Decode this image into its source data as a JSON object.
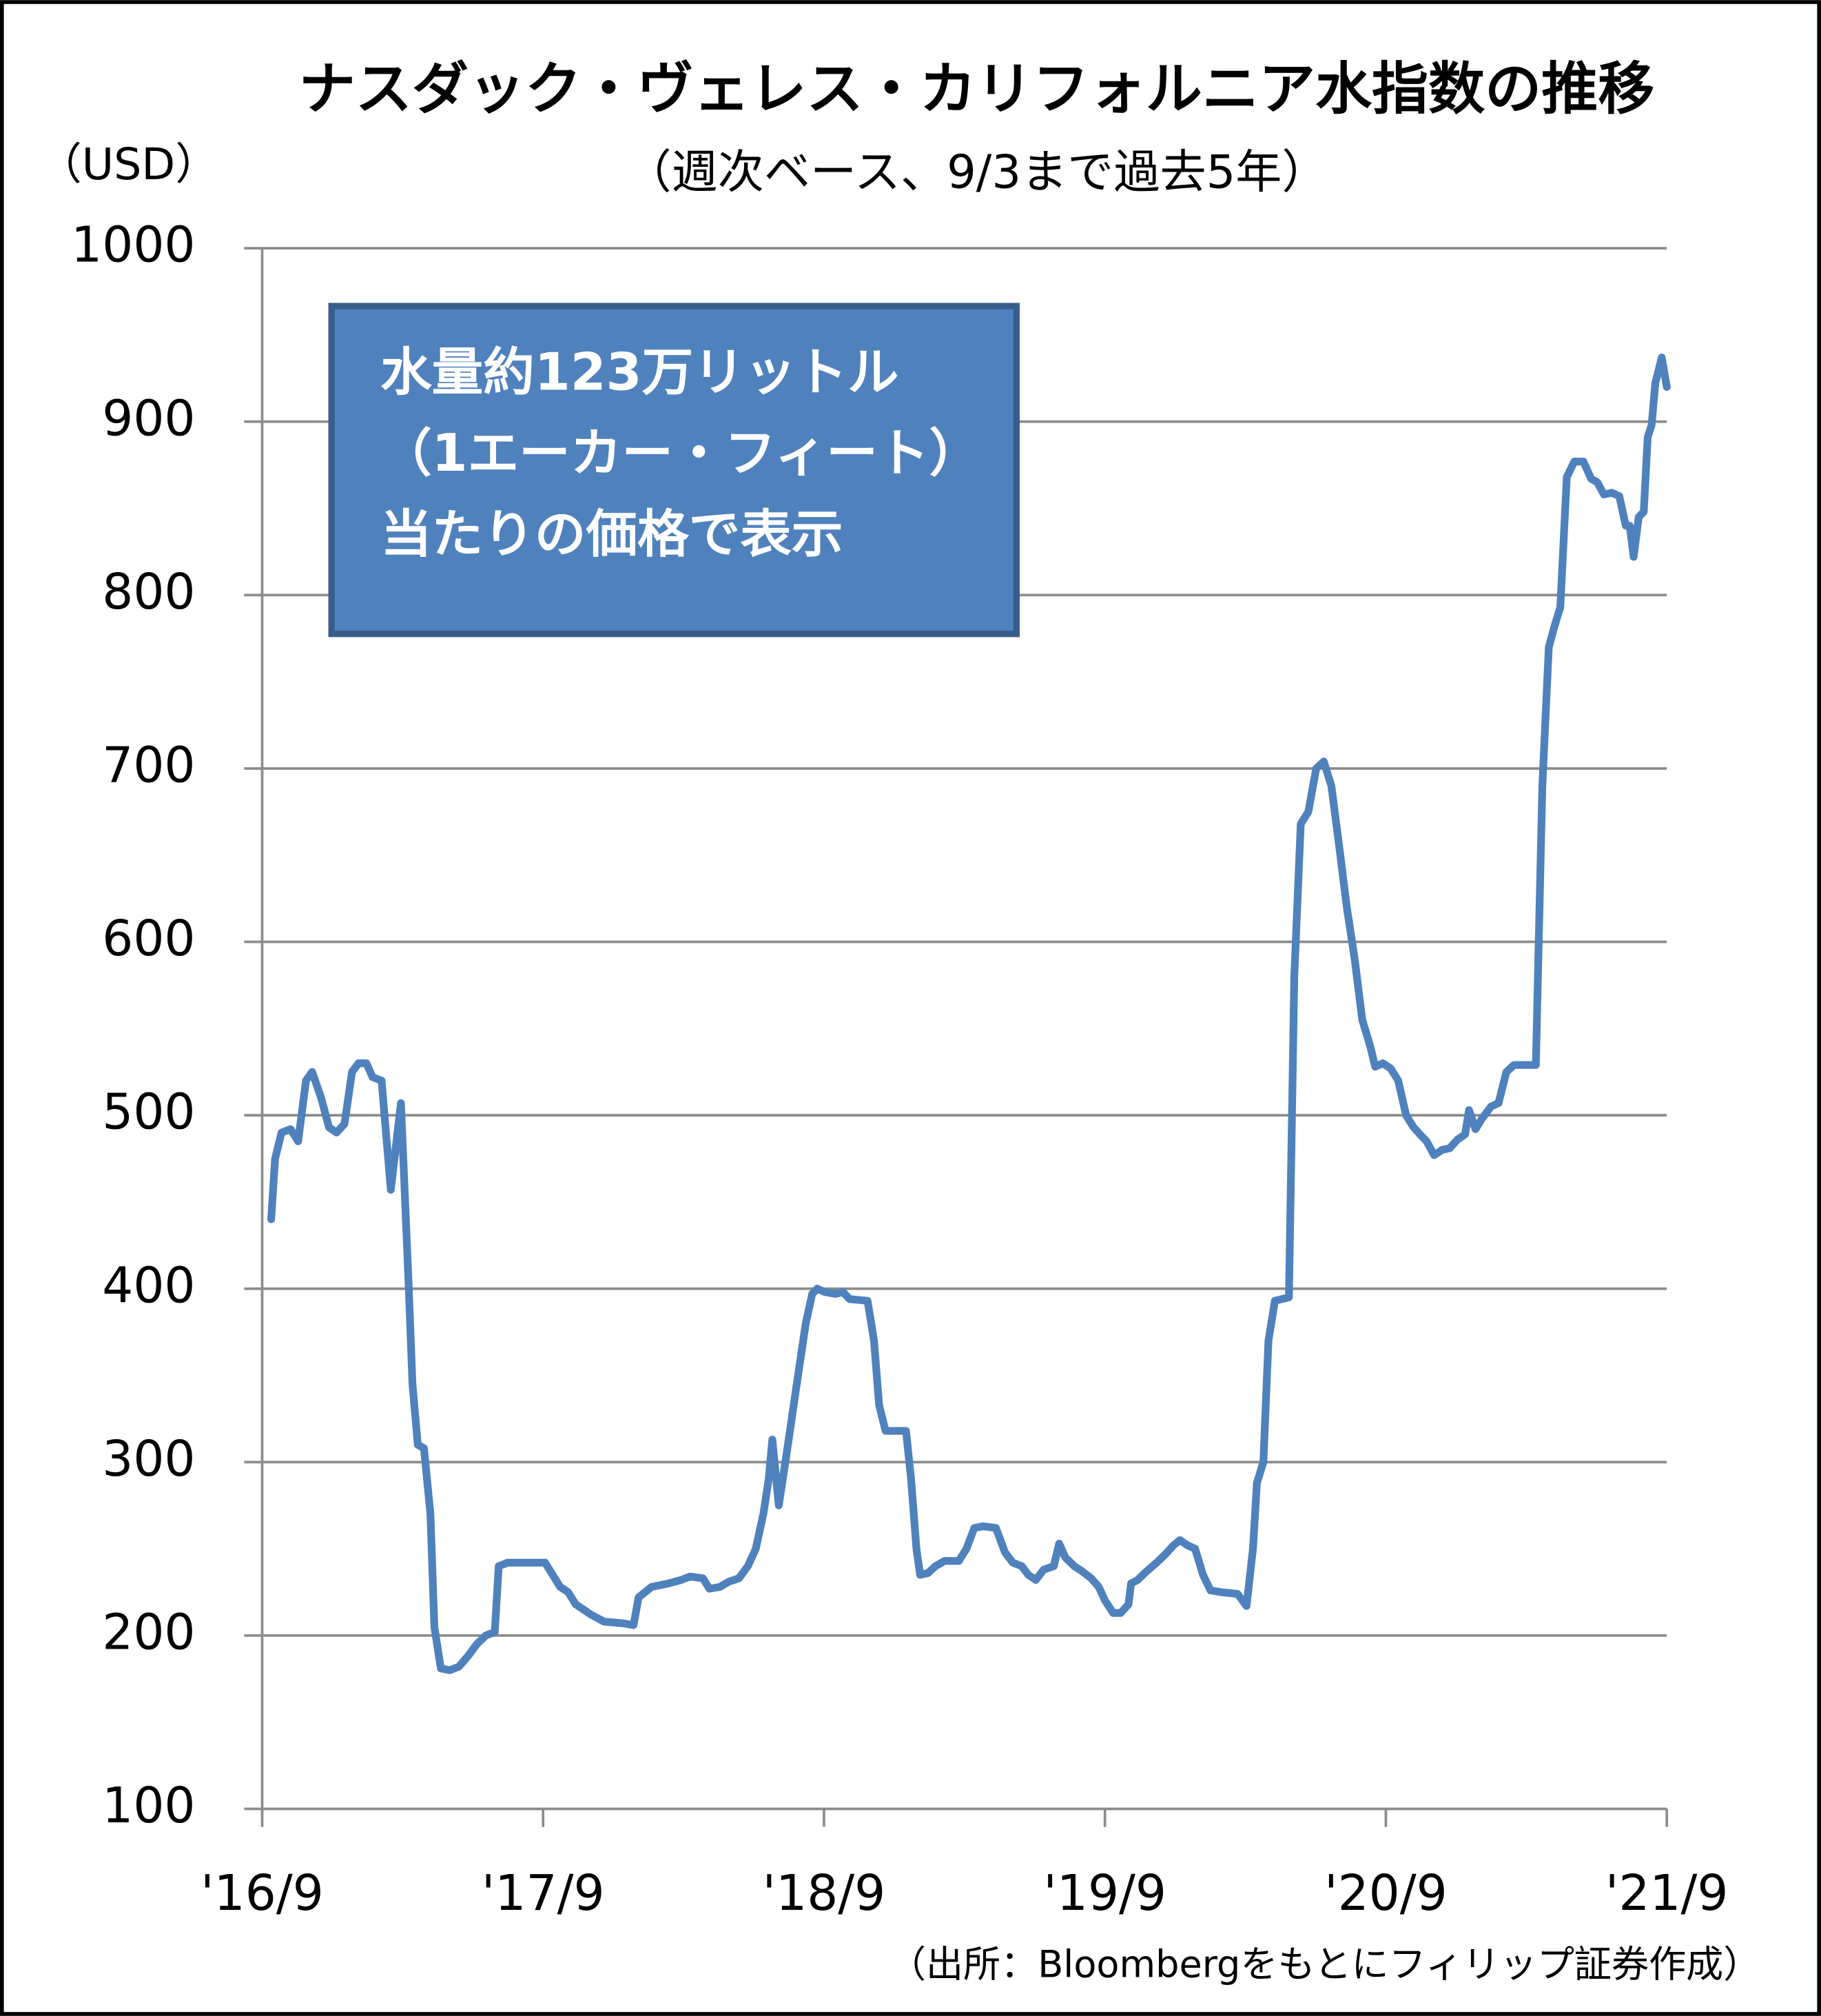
{
  "chart_data": {
    "type": "line",
    "title": "ナスダック・ヴェレス・カリフォルニア水指数の推移",
    "subtitle": "（週次ベース、9/3まで過去5年）",
    "y_label": "（USD）",
    "source": "（出所：Bloombergをもとにフィリップ証券作成）",
    "annotation": [
      "水量約123万リットル",
      "（1エーカー・フィート）",
      "当たりの価格で表示"
    ],
    "color": "#4f81bd",
    "grid": true,
    "xlim": [
      2016.667,
      2021.667
    ],
    "xticks": [
      {
        "value": 2016.667,
        "label": "'16/9"
      },
      {
        "value": 2017.667,
        "label": "'17/9"
      },
      {
        "value": 2018.667,
        "label": "'18/9"
      },
      {
        "value": 2019.667,
        "label": "'19/9"
      },
      {
        "value": 2020.667,
        "label": "'20/9"
      },
      {
        "value": 2021.667,
        "label": "'21/9"
      }
    ],
    "ylim": [
      100,
      1000
    ],
    "yticks": [
      100,
      200,
      300,
      400,
      500,
      600,
      700,
      800,
      900,
      1000
    ],
    "x": [
      2016.699,
      2016.713,
      2016.736,
      2016.768,
      2016.795,
      2016.823,
      2016.845,
      2016.877,
      2016.905,
      2016.932,
      2016.96,
      2016.987,
      2017.01,
      2017.038,
      2017.06,
      2017.092,
      2017.125,
      2017.161,
      2017.189,
      2017.202,
      2017.221,
      2017.243,
      2017.266,
      2017.28,
      2017.303,
      2017.335,
      2017.367,
      2017.399,
      2017.431,
      2017.463,
      2017.495,
      2017.509,
      2017.541,
      2017.609,
      2017.674,
      2017.701,
      2017.728,
      2017.756,
      2017.783,
      2017.838,
      2017.884,
      2017.953,
      2017.989,
      2018.007,
      2018.053,
      2018.113,
      2018.158,
      2018.19,
      2018.236,
      2018.259,
      2018.296,
      2018.328,
      2018.364,
      2018.396,
      2018.424,
      2018.451,
      2018.47,
      2018.483,
      2018.506,
      2018.534,
      2018.57,
      2018.602,
      2018.625,
      2018.643,
      2018.671,
      2018.707,
      2018.735,
      2018.758,
      2018.822,
      2018.845,
      2018.863,
      2018.886,
      2018.959,
      2018.977,
      2018.996,
      2019.009,
      2019.037,
      2019.064,
      2019.096,
      2019.147,
      2019.174,
      2019.202,
      2019.234,
      2019.279,
      2019.311,
      2019.339,
      2019.371,
      2019.394,
      2019.421,
      2019.449,
      2019.485,
      2019.504,
      2019.526,
      2019.558,
      2019.586,
      2019.618,
      2019.645,
      2019.668,
      2019.696,
      2019.723,
      2019.751,
      2019.76,
      2019.783,
      2019.815,
      2019.851,
      2019.883,
      2019.911,
      2019.934,
      2019.961,
      2019.988,
      2020.016,
      2020.043,
      2020.08,
      2020.139,
      2020.171,
      2020.194,
      2020.208,
      2020.231,
      2020.249,
      2020.272,
      2020.322,
      2020.341,
      2020.364,
      2020.391,
      2020.419,
      2020.446,
      2020.473,
      2020.501,
      2020.528,
      2020.556,
      2020.583,
      2020.611,
      2020.629,
      2020.656,
      2020.684,
      2020.711,
      2020.739,
      2020.766,
      2020.794,
      2020.812,
      2020.839,
      2020.867,
      2020.894,
      2020.922,
      2020.949,
      2020.963,
      2020.986,
      2021.009,
      2021.041,
      2021.068,
      2021.096,
      2021.123,
      2021.201,
      2021.224,
      2021.247,
      2021.269,
      2021.288,
      2021.311,
      2021.338,
      2021.37,
      2021.398,
      2021.42,
      2021.443,
      2021.471,
      2021.498,
      2021.521,
      2021.535,
      2021.549,
      2021.567,
      2021.585,
      2021.599,
      2021.613,
      2021.626,
      2021.649,
      2021.667
    ],
    "values": [
      440,
      475,
      490,
      492,
      485,
      520,
      525,
      510,
      493,
      490,
      495,
      525,
      530,
      530,
      522,
      520,
      457,
      507,
      400,
      345,
      310,
      308,
      270,
      205,
      181,
      180,
      182,
      188,
      195,
      200,
      202,
      240,
      242,
      242,
      242,
      235,
      228,
      225,
      218,
      212,
      208,
      207,
      206,
      222,
      228,
      230,
      232,
      234,
      233,
      227,
      228,
      231,
      233,
      240,
      250,
      270,
      290,
      313,
      275,
      305,
      345,
      380,
      397,
      400,
      398,
      397,
      398,
      394,
      393,
      370,
      333,
      318,
      318,
      290,
      250,
      235,
      236,
      240,
      243,
      243,
      250,
      262,
      263,
      262,
      248,
      242,
      240,
      235,
      232,
      238,
      240,
      253,
      245,
      240,
      237,
      233,
      228,
      220,
      213,
      213,
      218,
      230,
      232,
      237,
      242,
      247,
      252,
      255,
      252,
      250,
      235,
      226,
      225,
      224,
      217,
      250,
      288,
      300,
      370,
      393,
      395,
      580,
      668,
      675,
      700,
      704,
      690,
      655,
      620,
      590,
      555,
      540,
      528,
      530,
      527,
      520,
      500,
      493,
      488,
      485,
      477,
      480,
      481,
      486,
      489,
      503,
      492,
      498,
      505,
      507,
      525,
      529,
      529,
      690,
      770,
      783,
      793,
      868,
      877,
      877,
      867,
      865,
      858,
      859,
      857,
      840,
      840,
      822,
      845,
      848,
      891,
      898,
      922,
      937,
      920
    ]
  }
}
